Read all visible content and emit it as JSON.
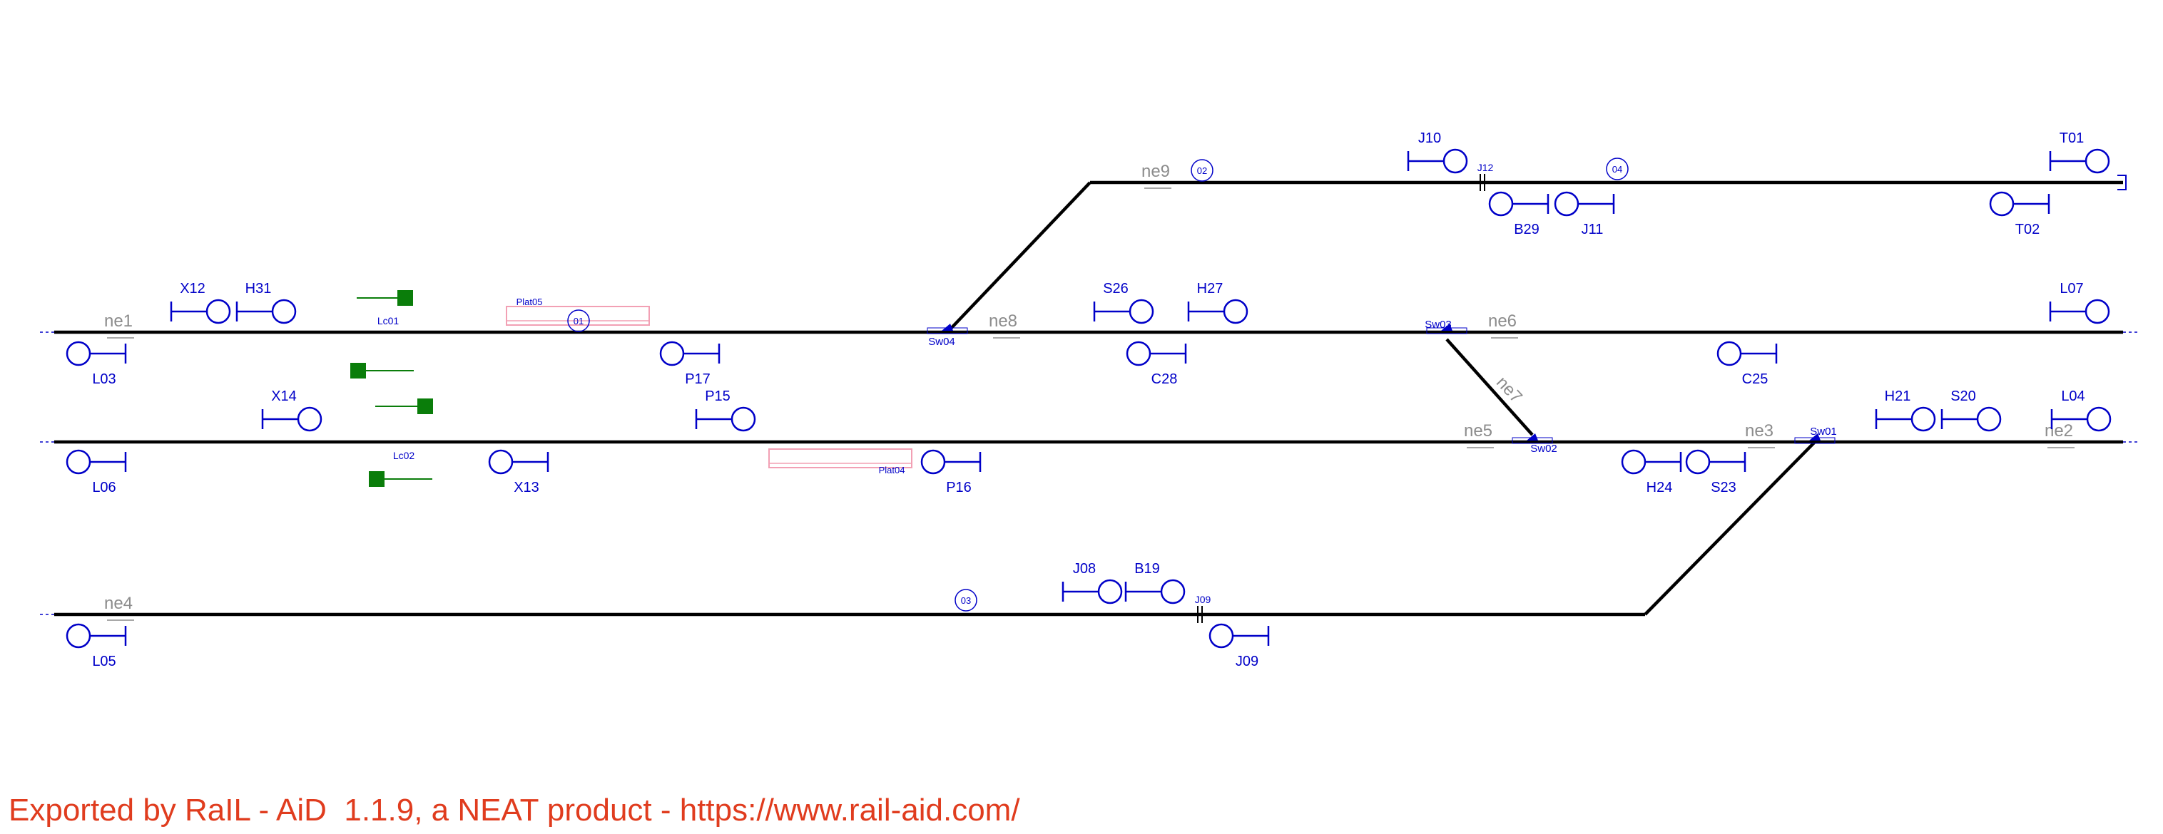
{
  "colors": {
    "track": "#000000",
    "signal": "#0000c8",
    "netelement": "#8c8c8c",
    "platform": "#f2a0b4",
    "levelcrossing": "#0a7d0a",
    "footer": "#e03c1e"
  },
  "netelements": [
    "ne1",
    "ne2",
    "ne3",
    "ne4",
    "ne5",
    "ne6",
    "ne7",
    "ne8",
    "ne9"
  ],
  "switches": [
    "Sw01",
    "Sw02",
    "Sw03",
    "Sw04"
  ],
  "routes": [
    "01",
    "02",
    "03",
    "04"
  ],
  "platforms": [
    "Plat04",
    "Plat05"
  ],
  "level_crossings": [
    "Lc01",
    "Lc02"
  ],
  "joints": [
    "J09",
    "J12"
  ],
  "signals": [
    {
      "id": "X12",
      "label": "X12",
      "dir": "right",
      "label_pos": "above"
    },
    {
      "id": "H31",
      "label": "H31",
      "dir": "right",
      "label_pos": "above"
    },
    {
      "id": "L03",
      "label": "L03",
      "dir": "left",
      "label_pos": "below"
    },
    {
      "id": "P17",
      "label": "P17",
      "dir": "left",
      "label_pos": "below"
    },
    {
      "id": "S26",
      "label": "S26",
      "dir": "right",
      "label_pos": "above"
    },
    {
      "id": "H27",
      "label": "H27",
      "dir": "right",
      "label_pos": "above"
    },
    {
      "id": "C28",
      "label": "C28",
      "dir": "left",
      "label_pos": "below"
    },
    {
      "id": "C25",
      "label": "C25",
      "dir": "left",
      "label_pos": "below"
    },
    {
      "id": "L07",
      "label": "L07",
      "dir": "right",
      "label_pos": "above"
    },
    {
      "id": "J10",
      "label": "J10",
      "dir": "right",
      "label_pos": "above"
    },
    {
      "id": "T01",
      "label": "T01",
      "dir": "right",
      "label_pos": "above"
    },
    {
      "id": "B29",
      "label": "B29",
      "dir": "left",
      "label_pos": "below"
    },
    {
      "id": "J11",
      "label": "J11",
      "dir": "left",
      "label_pos": "below"
    },
    {
      "id": "T02",
      "label": "T02",
      "dir": "left",
      "label_pos": "below"
    },
    {
      "id": "X14",
      "label": "X14",
      "dir": "right",
      "label_pos": "above"
    },
    {
      "id": "P15",
      "label": "P15",
      "dir": "right",
      "label_pos": "above"
    },
    {
      "id": "L06",
      "label": "L06",
      "dir": "left",
      "label_pos": "below"
    },
    {
      "id": "X13",
      "label": "X13",
      "dir": "left",
      "label_pos": "below"
    },
    {
      "id": "P16",
      "label": "P16",
      "dir": "left",
      "label_pos": "below"
    },
    {
      "id": "H24",
      "label": "H24",
      "dir": "left",
      "label_pos": "below"
    },
    {
      "id": "S23",
      "label": "S23",
      "dir": "left",
      "label_pos": "below"
    },
    {
      "id": "H21",
      "label": "H21",
      "dir": "right",
      "label_pos": "above"
    },
    {
      "id": "S20",
      "label": "S20",
      "dir": "right",
      "label_pos": "above"
    },
    {
      "id": "L04",
      "label": "L04",
      "dir": "right",
      "label_pos": "above"
    },
    {
      "id": "J08",
      "label": "J08",
      "dir": "right",
      "label_pos": "above"
    },
    {
      "id": "B19",
      "label": "B19",
      "dir": "right",
      "label_pos": "above"
    },
    {
      "id": "L05",
      "label": "L05",
      "dir": "left",
      "label_pos": "below"
    },
    {
      "id": "J09",
      "label": "J09",
      "dir": "left",
      "label_pos": "below"
    }
  ],
  "footer": {
    "text": "Exported by RaIL - AiD  1.1.9, a NEAT product - https://www.rail-aid.com/"
  }
}
